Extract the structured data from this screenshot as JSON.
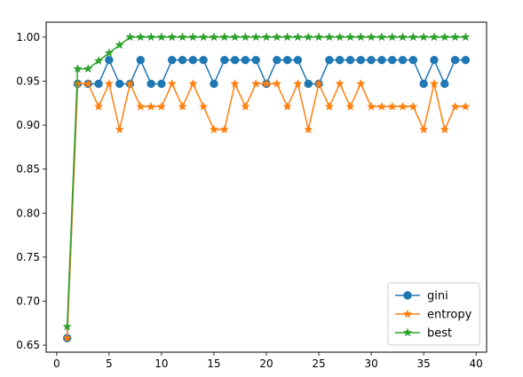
{
  "chart_data": {
    "type": "line",
    "title": "",
    "xlabel": "",
    "ylabel": "",
    "xlim": [
      -1,
      41
    ],
    "ylim": [
      0.642,
      1.017
    ],
    "xticks": [
      0,
      5,
      10,
      15,
      20,
      25,
      30,
      35,
      40
    ],
    "yticks": [
      0.65,
      0.7,
      0.75,
      0.8,
      0.85,
      0.9,
      0.95,
      1.0
    ],
    "ytick_labels": [
      "0.65",
      "0.70",
      "0.75",
      "0.80",
      "0.85",
      "0.90",
      "0.95",
      "1.00"
    ],
    "grid": false,
    "legend_position": "lower-right",
    "x": [
      1,
      2,
      3,
      4,
      5,
      6,
      7,
      8,
      9,
      10,
      11,
      12,
      13,
      14,
      15,
      16,
      17,
      18,
      19,
      20,
      21,
      22,
      23,
      24,
      25,
      26,
      27,
      28,
      29,
      30,
      31,
      32,
      33,
      34,
      35,
      36,
      37,
      38,
      39
    ],
    "series": [
      {
        "name": "gini",
        "color": "#1f77b4",
        "marker": "circle",
        "values": [
          0.658,
          0.947,
          0.947,
          0.947,
          0.974,
          0.947,
          0.947,
          0.974,
          0.947,
          0.947,
          0.974,
          0.974,
          0.974,
          0.974,
          0.947,
          0.974,
          0.974,
          0.974,
          0.974,
          0.947,
          0.974,
          0.974,
          0.974,
          0.947,
          0.947,
          0.974,
          0.974,
          0.974,
          0.974,
          0.974,
          0.974,
          0.974,
          0.974,
          0.974,
          0.947,
          0.974,
          0.947,
          0.974,
          0.974
        ]
      },
      {
        "name": "entropy",
        "color": "#ff7f0e",
        "marker": "star",
        "values": [
          0.658,
          0.947,
          0.947,
          0.921,
          0.947,
          0.895,
          0.947,
          0.921,
          0.921,
          0.921,
          0.947,
          0.921,
          0.947,
          0.921,
          0.895,
          0.895,
          0.947,
          0.921,
          0.947,
          0.947,
          0.947,
          0.921,
          0.947,
          0.895,
          0.947,
          0.921,
          0.947,
          0.921,
          0.947,
          0.921,
          0.921,
          0.921,
          0.921,
          0.921,
          0.895,
          0.947,
          0.895,
          0.921,
          0.921
        ]
      },
      {
        "name": "best",
        "color": "#2ca02c",
        "marker": "star",
        "values": [
          0.671,
          0.964,
          0.964,
          0.973,
          0.982,
          0.991,
          1.0,
          1.0,
          1.0,
          1.0,
          1.0,
          1.0,
          1.0,
          1.0,
          1.0,
          1.0,
          1.0,
          1.0,
          1.0,
          1.0,
          1.0,
          1.0,
          1.0,
          1.0,
          1.0,
          1.0,
          1.0,
          1.0,
          1.0,
          1.0,
          1.0,
          1.0,
          1.0,
          1.0,
          1.0,
          1.0,
          1.0,
          1.0,
          1.0
        ]
      }
    ]
  }
}
